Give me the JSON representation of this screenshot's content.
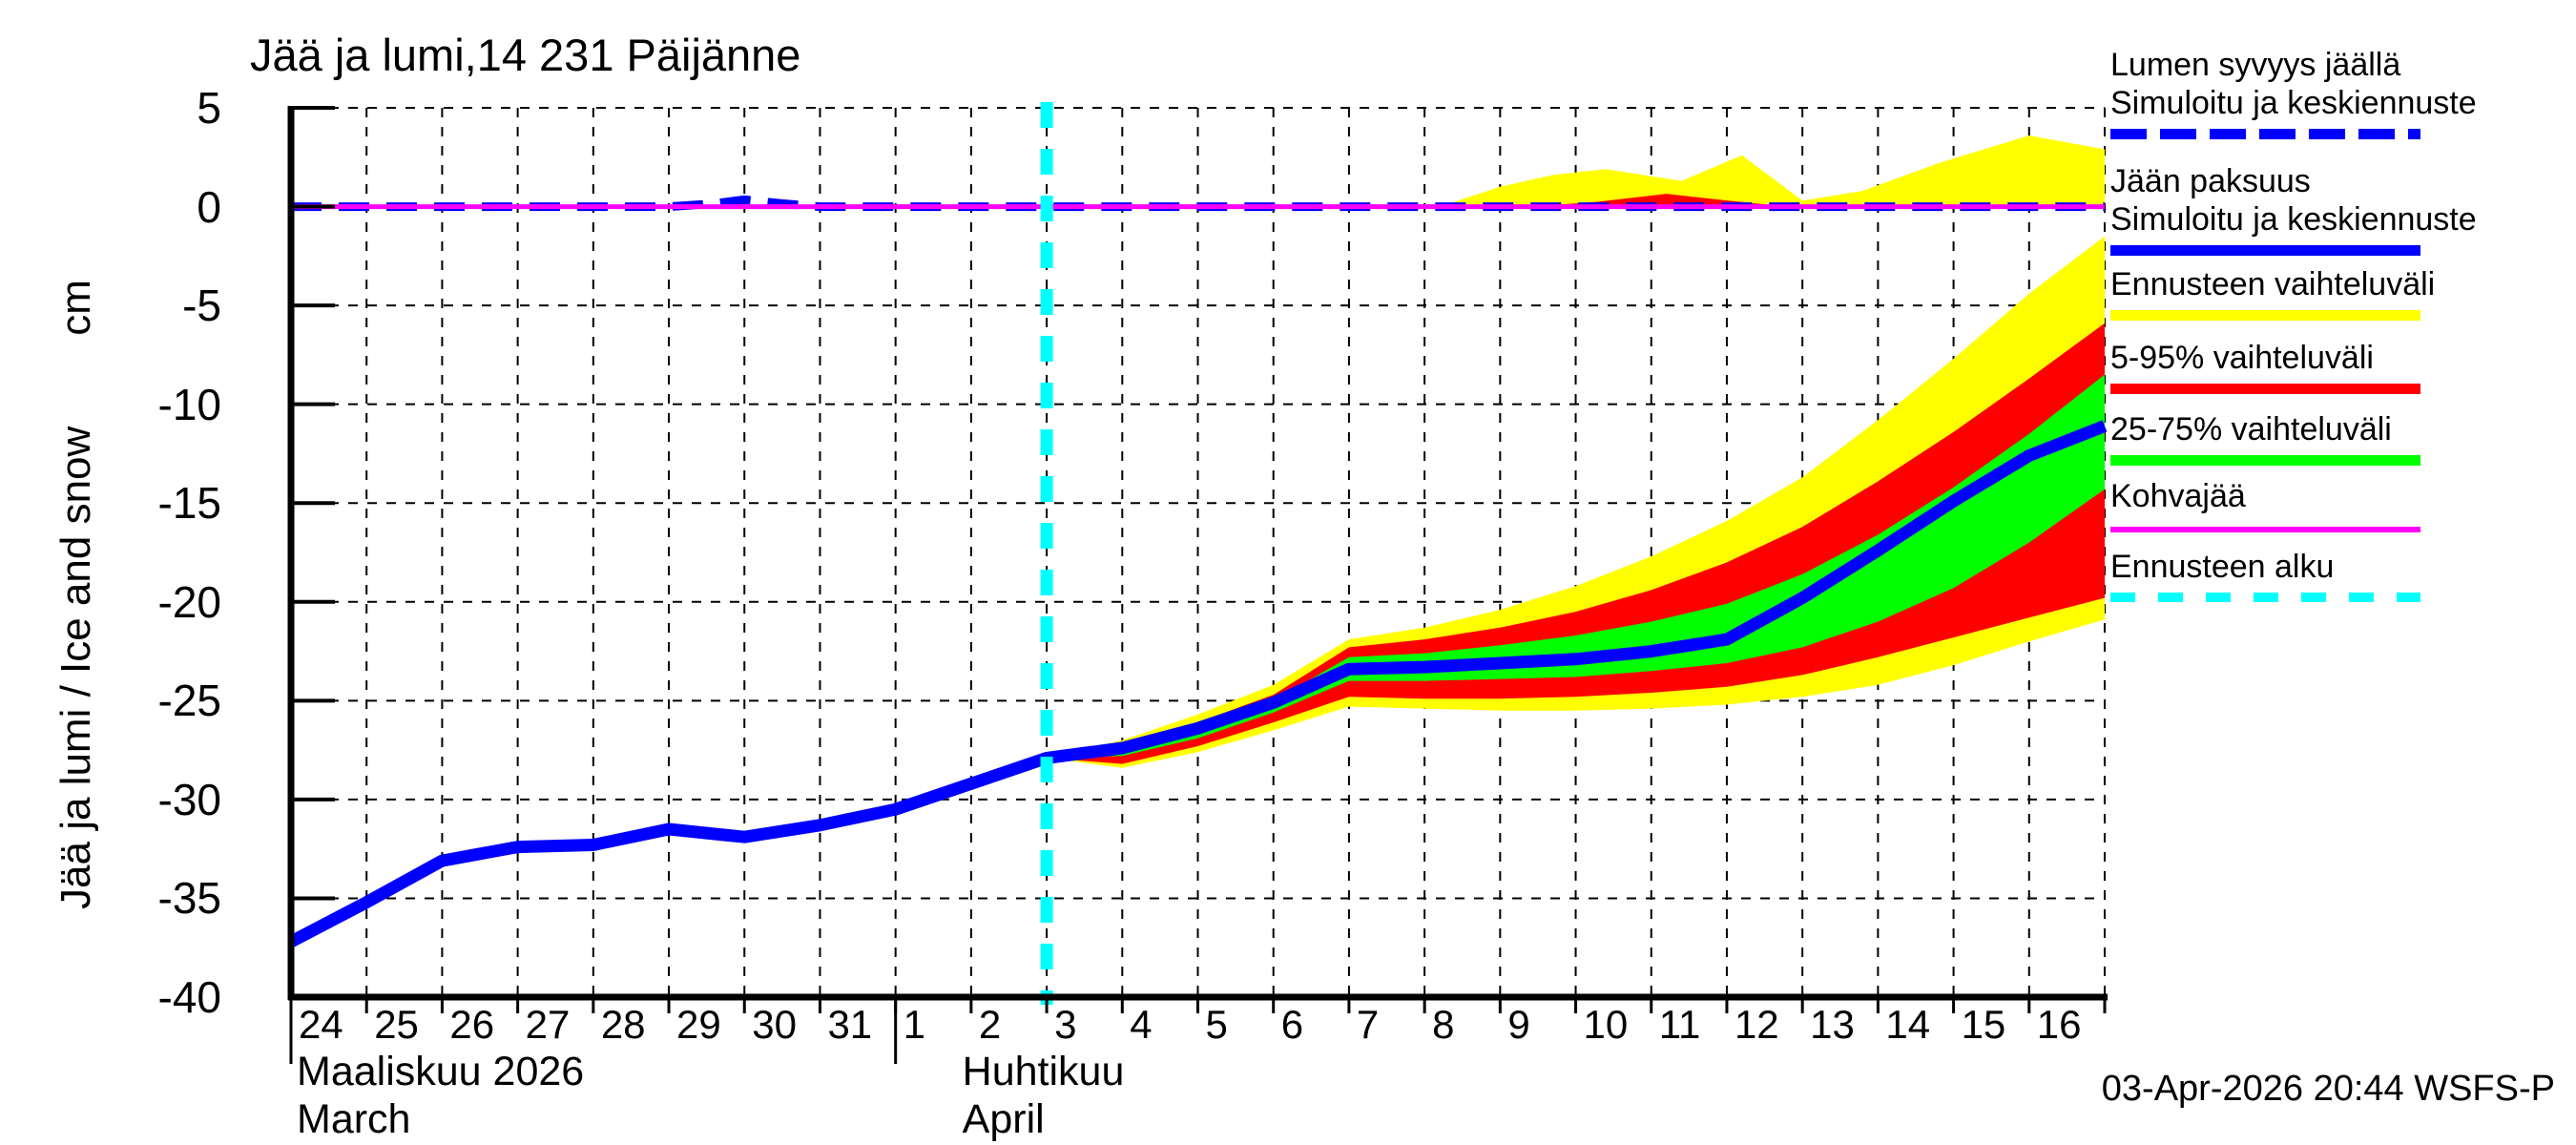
{
  "title": "Jää ja lumi,14 231 Päijänne",
  "y_axis": {
    "label": "Jää ja lumi / Ice and snow",
    "unit": "cm",
    "tick_values": [
      5,
      0,
      -5,
      -10,
      -15,
      -20,
      -25,
      -30,
      -35,
      -40
    ]
  },
  "x_axis": {
    "march_days": [
      24,
      25,
      26,
      27,
      28,
      29,
      30,
      31
    ],
    "april_days": [
      1,
      2,
      3,
      4,
      5,
      6,
      7,
      8,
      9,
      10,
      11,
      12,
      13,
      14,
      15,
      16
    ],
    "month1_fi": "Maaliskuu 2026",
    "month1_en": "March",
    "month2_fi": "Huhtikuu",
    "month2_en": "April"
  },
  "legend": {
    "items": [
      {
        "lines": [
          "Lumen syvyys jäällä",
          "Simuloitu ja keskiennuste"
        ],
        "swatch": "blue-dashed"
      },
      {
        "lines": [
          "Jään paksuus",
          "Simuloitu ja keskiennuste"
        ],
        "swatch": "blue-solid"
      },
      {
        "lines": [
          "Ennusteen vaihteluväli"
        ],
        "swatch": "yellow-solid"
      },
      {
        "lines": [
          "5-95% vaihteluväli"
        ],
        "swatch": "red-solid"
      },
      {
        "lines": [
          "25-75% vaihteluväli"
        ],
        "swatch": "green-solid"
      },
      {
        "lines": [
          "Kohvajää"
        ],
        "swatch": "magenta-solid"
      },
      {
        "lines": [
          "Ennusteen alku"
        ],
        "swatch": "cyan-dashed"
      }
    ]
  },
  "footer": {
    "timestamp": "03-Apr-2026 20:44 WSFS-P"
  },
  "colors": {
    "ice_line": "#0000ff",
    "snow_line": "#0000ff",
    "range_full": "#ffff00",
    "range_5_95": "#ff0000",
    "range_25_75": "#00ff00",
    "kohvajaa": "#ff00ff",
    "forecast_start": "#00ffff",
    "axis": "#000000"
  },
  "chart_data": {
    "type": "line",
    "title": "Jää ja lumi,14 231 Päijänne",
    "ylabel": "Jää ja lumi / Ice and snow (cm)",
    "ylim": [
      -40,
      5
    ],
    "x_total_days": 24,
    "x_start": "2026-03-24",
    "x_end": "2026-04-17",
    "forecast_start_t": 10,
    "forecast_start_date": "2026-04-03",
    "month_boundaries_t": [
      0,
      8
    ],
    "series": [
      {
        "name": "Jään paksuus (simuloitu ja keskiennuste)",
        "style": "blue-solid",
        "points": [
          [
            0,
            -37.2
          ],
          [
            1,
            -35.2
          ],
          [
            2,
            -33.1
          ],
          [
            3,
            -32.4
          ],
          [
            4,
            -32.3
          ],
          [
            5,
            -31.5
          ],
          [
            6,
            -31.9
          ],
          [
            7,
            -31.3
          ],
          [
            8,
            -30.5
          ],
          [
            9,
            -29.2
          ],
          [
            10,
            -27.9
          ],
          [
            11,
            -27.4
          ],
          [
            12,
            -26.4
          ],
          [
            13,
            -25.1
          ],
          [
            14,
            -23.4
          ],
          [
            15,
            -23.3
          ],
          [
            16,
            -23.1
          ],
          [
            17,
            -22.9
          ],
          [
            18,
            -22.5
          ],
          [
            19,
            -21.9
          ],
          [
            20,
            -19.8
          ],
          [
            21,
            -17.4
          ],
          [
            22,
            -14.9
          ],
          [
            23,
            -12.6
          ],
          [
            24,
            -11.1
          ]
        ]
      },
      {
        "name": "Lumen syvyys jäällä (simuloitu ja keskiennuste)",
        "style": "blue-dashed",
        "points": [
          [
            0,
            0
          ],
          [
            5.0,
            0
          ],
          [
            5.6,
            0.15
          ],
          [
            6.0,
            0.35
          ],
          [
            6.5,
            0.15
          ],
          [
            7.0,
            0
          ],
          [
            24,
            0
          ]
        ]
      },
      {
        "name": "Kohvajää",
        "style": "magenta-solid",
        "points": [
          [
            0,
            0
          ],
          [
            24,
            0
          ]
        ]
      }
    ],
    "bands": [
      {
        "name": "Ennusteen vaihteluväli (jää)",
        "color_key": "range_full",
        "hi": [
          [
            10,
            -27.9
          ],
          [
            11,
            -27.0
          ],
          [
            12,
            -25.7
          ],
          [
            13,
            -24.2
          ],
          [
            14,
            -21.9
          ],
          [
            15,
            -21.3
          ],
          [
            16,
            -20.4
          ],
          [
            17,
            -19.2
          ],
          [
            18,
            -17.7
          ],
          [
            19,
            -15.9
          ],
          [
            20,
            -13.7
          ],
          [
            21,
            -10.8
          ],
          [
            22,
            -7.7
          ],
          [
            23,
            -4.4
          ],
          [
            24,
            -1.5
          ]
        ],
        "lo": [
          [
            10,
            -27.9
          ],
          [
            11,
            -28.4
          ],
          [
            12,
            -27.6
          ],
          [
            13,
            -26.5
          ],
          [
            14,
            -25.3
          ],
          [
            15,
            -25.4
          ],
          [
            16,
            -25.5
          ],
          [
            17,
            -25.5
          ],
          [
            18,
            -25.4
          ],
          [
            19,
            -25.2
          ],
          [
            20,
            -24.8
          ],
          [
            21,
            -24.2
          ],
          [
            22,
            -23.2
          ],
          [
            23,
            -22.0
          ],
          [
            24,
            -20.9
          ]
        ]
      },
      {
        "name": "5-95% vaihteluväli (jää)",
        "color_key": "range_5_95",
        "hi": [
          [
            10,
            -27.9
          ],
          [
            11,
            -27.2
          ],
          [
            12,
            -26.1
          ],
          [
            13,
            -24.7
          ],
          [
            14,
            -22.3
          ],
          [
            15,
            -21.9
          ],
          [
            16,
            -21.3
          ],
          [
            17,
            -20.5
          ],
          [
            18,
            -19.4
          ],
          [
            19,
            -18.0
          ],
          [
            20,
            -16.2
          ],
          [
            21,
            -13.9
          ],
          [
            22,
            -11.4
          ],
          [
            23,
            -8.7
          ],
          [
            24,
            -5.9
          ]
        ],
        "lo": [
          [
            10,
            -27.9
          ],
          [
            11,
            -28.2
          ],
          [
            12,
            -27.3
          ],
          [
            13,
            -26.1
          ],
          [
            14,
            -24.8
          ],
          [
            15,
            -24.9
          ],
          [
            16,
            -24.9
          ],
          [
            17,
            -24.8
          ],
          [
            18,
            -24.6
          ],
          [
            19,
            -24.3
          ],
          [
            20,
            -23.7
          ],
          [
            21,
            -22.8
          ],
          [
            22,
            -21.8
          ],
          [
            23,
            -20.8
          ],
          [
            24,
            -19.8
          ]
        ]
      },
      {
        "name": "25-75% vaihteluväli (jää)",
        "color_key": "range_25_75",
        "hi": [
          [
            10,
            -27.9
          ],
          [
            11,
            -27.3
          ],
          [
            12,
            -26.3
          ],
          [
            13,
            -25.0
          ],
          [
            14,
            -22.8
          ],
          [
            15,
            -22.6
          ],
          [
            16,
            -22.2
          ],
          [
            17,
            -21.7
          ],
          [
            18,
            -21.0
          ],
          [
            19,
            -20.1
          ],
          [
            20,
            -18.6
          ],
          [
            21,
            -16.6
          ],
          [
            22,
            -14.2
          ],
          [
            23,
            -11.5
          ],
          [
            24,
            -8.5
          ]
        ],
        "lo": [
          [
            10,
            -27.9
          ],
          [
            11,
            -27.8
          ],
          [
            12,
            -26.9
          ],
          [
            13,
            -25.6
          ],
          [
            14,
            -24.0
          ],
          [
            15,
            -24.0
          ],
          [
            16,
            -23.9
          ],
          [
            17,
            -23.8
          ],
          [
            18,
            -23.5
          ],
          [
            19,
            -23.1
          ],
          [
            20,
            -22.3
          ],
          [
            21,
            -21.0
          ],
          [
            22,
            -19.3
          ],
          [
            23,
            -17.0
          ],
          [
            24,
            -14.3
          ]
        ]
      },
      {
        "name": "Ennusteen vaihteluväli (lumi jäällä)",
        "color_key": "range_full",
        "baseline": 0,
        "hi": [
          [
            15.2,
            0
          ],
          [
            16,
            1.0
          ],
          [
            16.7,
            1.6
          ],
          [
            17.4,
            1.9
          ],
          [
            18.4,
            1.3
          ],
          [
            19.2,
            2.6
          ],
          [
            20.0,
            0.3
          ],
          [
            20.8,
            0.8
          ],
          [
            21.8,
            2.2
          ],
          [
            23.0,
            3.6
          ],
          [
            24,
            2.9
          ]
        ]
      },
      {
        "name": "5-95% vaihteluväli (lumi jäällä)",
        "color_key": "range_5_95",
        "baseline": 0,
        "hi": [
          [
            16.4,
            0
          ],
          [
            17.3,
            0.25
          ],
          [
            18.2,
            0.65
          ],
          [
            18.9,
            0.35
          ],
          [
            19.8,
            0
          ]
        ]
      }
    ],
    "grid": true,
    "legend_position": "right"
  }
}
